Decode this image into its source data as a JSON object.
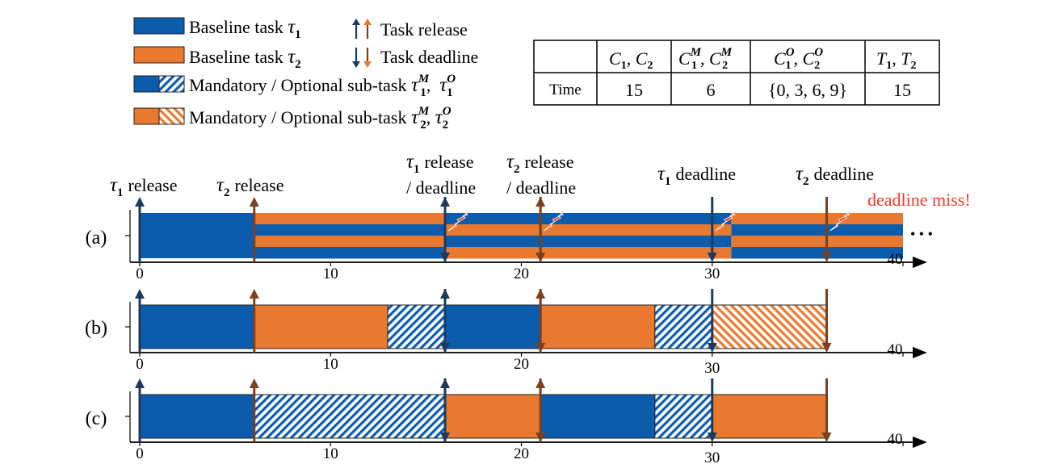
{
  "colors": {
    "tau1": "#0b5cad",
    "tau2": "#e8792f",
    "tau1_arrow": "#1d3a5e",
    "tau2_arrow": "#7b4020",
    "miss": "#f03a2e",
    "lightning": "#f23a25"
  },
  "legend": {
    "items": [
      {
        "prefix": "Baseline task ",
        "sym": "τ",
        "sub": "1",
        "sup": ""
      },
      {
        "prefix": "Baseline task ",
        "sym": "τ",
        "sub": "2",
        "sup": ""
      },
      {
        "prefix": "Mandatory / Optional sub-task ",
        "sym": "τ",
        "sub": "1",
        "sup": "M",
        "sep": ",  ",
        "sym2": "τ",
        "sub2": "1",
        "sup2": "O"
      },
      {
        "prefix": "Mandatory / Optional sub-task ",
        "sym": "τ",
        "sub": "2",
        "sup": "M",
        "sep": ", ",
        "sym2": "τ",
        "sub2": "2",
        "sup2": "O"
      }
    ],
    "release_label": "Task release",
    "deadline_label": "Task deadline"
  },
  "table": {
    "row_label": "Time",
    "values": [
      "15",
      "6",
      "{0, 3, 6, 9}",
      "15"
    ]
  },
  "annotations": {
    "tau1_release": "release",
    "tau2_release": "release",
    "tau1_release_deadline_1": "release",
    "tau1_release_deadline_2": "/ deadline",
    "tau2_release_deadline_1": "release",
    "tau2_release_deadline_2": "/ deadline",
    "tau1_deadline": "deadline",
    "tau2_deadline": "deadline",
    "deadline_miss": "deadline miss!",
    "continuation": "• • •"
  },
  "chart_data": {
    "type": "timeline",
    "x_ticks": [
      0,
      10,
      20,
      30,
      40
    ],
    "xlim": [
      0,
      40
    ],
    "rows": [
      {
        "label": "(a)",
        "segments": [
          {
            "start": 0,
            "end": 6,
            "task": "tau1",
            "kind": "baseline"
          },
          {
            "start": 6,
            "end": 16,
            "task": "tau2+tau1",
            "kind": "interleaved"
          },
          {
            "start": 16,
            "end": 21,
            "task": "tau1+tau2",
            "kind": "interleaved"
          },
          {
            "start": 21,
            "end": 31,
            "task": "tau1+tau2",
            "kind": "interleaved"
          },
          {
            "start": 31,
            "end": 40,
            "task": "tau2+tau1",
            "kind": "interleaved"
          }
        ],
        "releases": [
          {
            "t": 0,
            "task": "tau1"
          },
          {
            "t": 6,
            "task": "tau2"
          },
          {
            "t": 16,
            "task": "tau1"
          },
          {
            "t": 21,
            "task": "tau2"
          }
        ],
        "deadlines": [
          {
            "t": 16,
            "task": "tau1"
          },
          {
            "t": 21,
            "task": "tau2"
          },
          {
            "t": 30,
            "task": "tau1"
          },
          {
            "t": 36,
            "task": "tau2"
          }
        ],
        "misses": [
          16,
          21,
          30,
          36
        ]
      },
      {
        "label": "(b)",
        "segments": [
          {
            "start": 0,
            "end": 6,
            "task": "tau1",
            "kind": "mandatory"
          },
          {
            "start": 6,
            "end": 13,
            "task": "tau2",
            "kind": "mandatory"
          },
          {
            "start": 13,
            "end": 16,
            "task": "tau1",
            "kind": "optional"
          },
          {
            "start": 16,
            "end": 21,
            "task": "tau1",
            "kind": "mandatory"
          },
          {
            "start": 21,
            "end": 27,
            "task": "tau2",
            "kind": "mandatory"
          },
          {
            "start": 27,
            "end": 30,
            "task": "tau1",
            "kind": "optional"
          },
          {
            "start": 30,
            "end": 36,
            "task": "tau2",
            "kind": "optional"
          }
        ],
        "releases": [
          {
            "t": 0,
            "task": "tau1"
          },
          {
            "t": 6,
            "task": "tau2"
          },
          {
            "t": 16,
            "task": "tau1"
          },
          {
            "t": 21,
            "task": "tau2"
          }
        ],
        "deadlines": [
          {
            "t": 16,
            "task": "tau1"
          },
          {
            "t": 21,
            "task": "tau2"
          },
          {
            "t": 30,
            "task": "tau1"
          },
          {
            "t": 36,
            "task": "tau2"
          }
        ]
      },
      {
        "label": "(c)",
        "segments": [
          {
            "start": 0,
            "end": 6,
            "task": "tau1",
            "kind": "mandatory"
          },
          {
            "start": 6,
            "end": 16,
            "task": "tau1",
            "kind": "optional"
          },
          {
            "start": 16,
            "end": 21,
            "task": "tau2",
            "kind": "mandatory"
          },
          {
            "start": 21,
            "end": 27,
            "task": "tau1",
            "kind": "mandatory"
          },
          {
            "start": 27,
            "end": 30,
            "task": "tau1",
            "kind": "optional"
          },
          {
            "start": 30,
            "end": 36,
            "task": "tau2",
            "kind": "mandatory"
          }
        ],
        "releases": [
          {
            "t": 0,
            "task": "tau1"
          },
          {
            "t": 6,
            "task": "tau2"
          },
          {
            "t": 16,
            "task": "tau1"
          },
          {
            "t": 21,
            "task": "tau2"
          }
        ],
        "deadlines": [
          {
            "t": 16,
            "task": "tau1"
          },
          {
            "t": 21,
            "task": "tau2"
          },
          {
            "t": 30,
            "task": "tau1"
          },
          {
            "t": 36,
            "task": "tau2"
          }
        ]
      }
    ]
  }
}
